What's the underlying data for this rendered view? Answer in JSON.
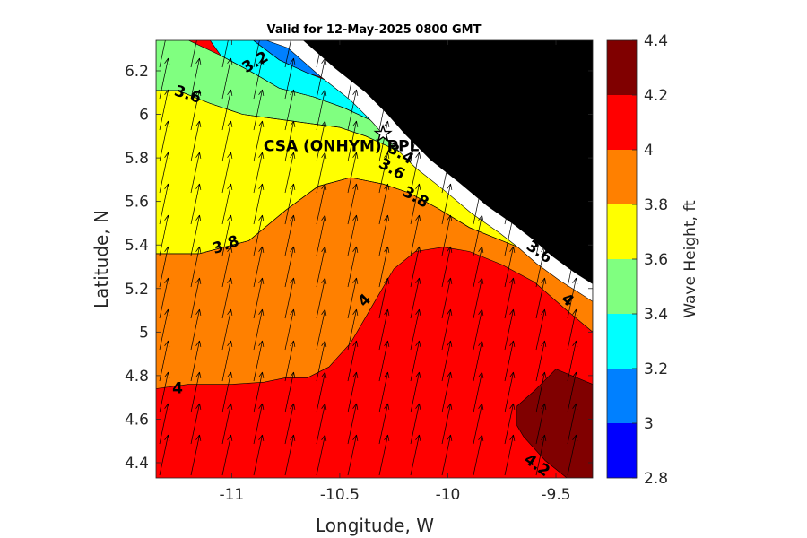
{
  "chart_data": {
    "type": "heatmap",
    "title": "Valid for 12-May-2025 0800 GMT",
    "xlabel": "Longitude, W",
    "ylabel": "Latitude, N",
    "xlim": [
      -11.35,
      -9.33
    ],
    "ylim": [
      4.33,
      6.34
    ],
    "xticks": [
      -11,
      -10.5,
      -10,
      -9.5
    ],
    "xtick_labels": [
      "-11",
      "-10.5",
      "-10",
      "-9.5"
    ],
    "yticks": [
      4.4,
      4.6,
      4.8,
      5,
      5.2,
      5.4,
      5.6,
      5.8,
      6,
      6.2
    ],
    "ytick_labels": [
      "4.4",
      "4.6",
      "4.8",
      "5",
      "5.2",
      "5.4",
      "5.6",
      "5.8",
      "6",
      "6.2"
    ],
    "colorbar": {
      "label": "Wave Height, ft",
      "levels": [
        2.8,
        3.0,
        3.2,
        3.4,
        3.6,
        3.8,
        4.0,
        4.2,
        4.4
      ],
      "tick_labels": [
        "2.8",
        "3",
        "3.2",
        "3.4",
        "3.6",
        "3.8",
        "4",
        "4.2",
        "4.4"
      ],
      "colors": [
        "#0000ff",
        "#0080ff",
        "#00ffff",
        "#80ff80",
        "#ffff00",
        "#ff8000",
        "#ff0000",
        "#800000"
      ]
    },
    "land_color": "#000000",
    "coastline": [
      [
        -10.67,
        6.34
      ],
      [
        -10.52,
        6.21
      ],
      [
        -10.38,
        6.1
      ],
      [
        -10.28,
        6.0
      ],
      [
        -10.2,
        5.91
      ],
      [
        -10.08,
        5.79
      ],
      [
        -9.94,
        5.68
      ],
      [
        -9.82,
        5.58
      ],
      [
        -9.69,
        5.49
      ],
      [
        -9.6,
        5.42
      ],
      [
        -9.52,
        5.35
      ],
      [
        -9.41,
        5.27
      ],
      [
        -9.33,
        5.22
      ]
    ],
    "contour_bands": [
      {
        "level": "3.8-4.0",
        "color": "#ff8000",
        "boundary": [
          [
            -11.35,
            5.36
          ],
          [
            -11.15,
            5.36
          ],
          [
            -10.92,
            5.42
          ],
          [
            -10.75,
            5.56
          ],
          [
            -10.6,
            5.67
          ],
          [
            -10.45,
            5.71
          ],
          [
            -10.3,
            5.68
          ],
          [
            -10.18,
            5.64
          ],
          [
            -10.05,
            5.57
          ],
          [
            -9.9,
            5.48
          ],
          [
            -9.75,
            5.42
          ],
          [
            -9.6,
            5.36
          ],
          [
            -9.5,
            5.32
          ],
          [
            -9.42,
            5.26
          ],
          [
            -9.33,
            5.22
          ],
          [
            -9.33,
            5.0
          ],
          [
            -9.45,
            5.1
          ],
          [
            -9.6,
            5.23
          ],
          [
            -9.75,
            5.31
          ],
          [
            -9.9,
            5.37
          ],
          [
            -10.02,
            5.39
          ],
          [
            -10.15,
            5.37
          ],
          [
            -10.25,
            5.29
          ],
          [
            -10.35,
            5.12
          ],
          [
            -10.45,
            4.95
          ],
          [
            -10.55,
            4.84
          ],
          [
            -10.65,
            4.79
          ],
          [
            -10.75,
            4.79
          ],
          [
            -10.85,
            4.77
          ],
          [
            -11.0,
            4.76
          ],
          [
            -11.2,
            4.76
          ],
          [
            -11.35,
            4.74
          ]
        ]
      },
      {
        "level": "3.6-3.8",
        "color": "#ffff00",
        "boundary": [
          [
            -11.35,
            6.11
          ],
          [
            -11.25,
            6.11
          ],
          [
            -11.1,
            6.05
          ],
          [
            -10.95,
            6.0
          ],
          [
            -10.8,
            5.98
          ],
          [
            -10.65,
            5.96
          ],
          [
            -10.5,
            5.94
          ],
          [
            -10.38,
            5.9
          ],
          [
            -10.27,
            5.85
          ],
          [
            -10.18,
            5.81
          ],
          [
            -10.08,
            5.77
          ],
          [
            -9.95,
            5.7
          ],
          [
            -9.85,
            5.63
          ],
          [
            -9.72,
            5.56
          ],
          [
            -9.6,
            5.49
          ],
          [
            -9.48,
            5.42
          ],
          [
            -9.38,
            5.33
          ],
          [
            -9.33,
            5.28
          ],
          [
            -9.33,
            5.22
          ],
          [
            -9.42,
            5.26
          ],
          [
            -9.5,
            5.32
          ],
          [
            -9.6,
            5.36
          ],
          [
            -9.75,
            5.42
          ],
          [
            -9.9,
            5.48
          ],
          [
            -10.05,
            5.57
          ],
          [
            -10.18,
            5.64
          ],
          [
            -10.3,
            5.68
          ],
          [
            -10.45,
            5.71
          ],
          [
            -10.6,
            5.67
          ],
          [
            -10.75,
            5.56
          ],
          [
            -10.92,
            5.42
          ],
          [
            -11.15,
            5.36
          ],
          [
            -11.35,
            5.36
          ]
        ]
      },
      {
        "level": "3.4-3.6",
        "color": "#80ff80",
        "boundary": [
          [
            -11.35,
            6.34
          ],
          [
            -11.2,
            6.34
          ],
          [
            -11.05,
            6.27
          ],
          [
            -10.9,
            6.19
          ],
          [
            -10.78,
            6.12
          ],
          [
            -10.62,
            6.08
          ],
          [
            -10.48,
            6.03
          ],
          [
            -10.35,
            5.97
          ],
          [
            -10.25,
            5.91
          ],
          [
            -10.15,
            5.84
          ],
          [
            -10.03,
            5.77
          ],
          [
            -9.92,
            5.69
          ],
          [
            -9.82,
            5.61
          ],
          [
            -9.7,
            5.55
          ],
          [
            -9.56,
            5.48
          ],
          [
            -9.45,
            5.4
          ],
          [
            -9.33,
            5.31
          ],
          [
            -9.33,
            5.28
          ],
          [
            -9.38,
            5.33
          ],
          [
            -9.48,
            5.42
          ],
          [
            -9.6,
            5.49
          ],
          [
            -9.72,
            5.56
          ],
          [
            -9.85,
            5.63
          ],
          [
            -9.95,
            5.7
          ],
          [
            -10.08,
            5.77
          ],
          [
            -10.18,
            5.81
          ],
          [
            -10.27,
            5.85
          ],
          [
            -10.38,
            5.9
          ],
          [
            -10.5,
            5.94
          ],
          [
            -10.65,
            5.96
          ],
          [
            -10.8,
            5.98
          ],
          [
            -10.95,
            6.0
          ],
          [
            -11.1,
            6.05
          ],
          [
            -11.25,
            6.11
          ],
          [
            -11.35,
            6.11
          ]
        ]
      },
      {
        "level": "3.2-3.4",
        "color": "#00ffff",
        "boundary": [
          [
            -11.1,
            6.34
          ],
          [
            -10.9,
            6.34
          ],
          [
            -10.78,
            6.25
          ],
          [
            -10.65,
            6.19
          ],
          [
            -10.52,
            6.14
          ],
          [
            -10.4,
            6.06
          ],
          [
            -10.3,
            5.98
          ],
          [
            -10.22,
            5.91
          ],
          [
            -10.12,
            5.84
          ],
          [
            -10.0,
            5.77
          ],
          [
            -9.95,
            5.74
          ],
          [
            -10.04,
            5.79
          ],
          [
            -10.15,
            5.85
          ],
          [
            -10.25,
            5.92
          ],
          [
            -10.35,
            5.97
          ],
          [
            -10.48,
            6.03
          ],
          [
            -10.62,
            6.08
          ],
          [
            -10.78,
            6.12
          ],
          [
            -10.9,
            6.19
          ],
          [
            -11.05,
            6.27
          ]
        ]
      },
      {
        "level": "3.0-3.2",
        "color": "#0080ff",
        "boundary": [
          [
            -10.9,
            6.34
          ],
          [
            -10.75,
            6.34
          ],
          [
            -10.62,
            6.27
          ],
          [
            -10.5,
            6.2
          ],
          [
            -10.4,
            6.14
          ],
          [
            -10.34,
            6.08
          ],
          [
            -10.42,
            6.11
          ],
          [
            -10.52,
            6.15
          ],
          [
            -10.65,
            6.19
          ],
          [
            -10.78,
            6.25
          ]
        ]
      },
      {
        "level": "4.2-4.4",
        "color": "#800000",
        "boundary": [
          [
            -9.68,
            4.66
          ],
          [
            -9.6,
            4.73
          ],
          [
            -9.5,
            4.83
          ],
          [
            -9.33,
            4.76
          ],
          [
            -9.33,
            4.33
          ],
          [
            -9.45,
            4.33
          ],
          [
            -9.55,
            4.41
          ],
          [
            -9.65,
            4.52
          ],
          [
            -9.68,
            4.57
          ]
        ]
      }
    ],
    "contour_labels": [
      {
        "text": "3.2",
        "x": -10.88,
        "y": 6.22,
        "rotate": -30
      },
      {
        "text": "3.6",
        "x": -11.21,
        "y": 6.07,
        "rotate": 18
      },
      {
        "text": "3.4",
        "x": -10.23,
        "y": 5.8,
        "rotate": 30
      },
      {
        "text": "3.6",
        "x": -10.27,
        "y": 5.73,
        "rotate": 30
      },
      {
        "text": "3.8",
        "x": -10.16,
        "y": 5.6,
        "rotate": 30
      },
      {
        "text": "3.6",
        "x": -9.59,
        "y": 5.35,
        "rotate": 35
      },
      {
        "text": "4",
        "x": -9.46,
        "y": 5.13,
        "rotate": 38
      },
      {
        "text": "3.8",
        "x": -11.02,
        "y": 5.38,
        "rotate": -20
      },
      {
        "text": "4",
        "x": -10.37,
        "y": 5.13,
        "rotate": -45
      },
      {
        "text": "4",
        "x": -11.25,
        "y": 4.72,
        "rotate": 0
      },
      {
        "text": "4.2",
        "x": -9.6,
        "y": 4.37,
        "rotate": 35
      }
    ],
    "station": {
      "label": "CSA (ONHYM) PPL ES",
      "lon": -10.3,
      "lat": 5.91
    },
    "wave_direction_deg_from_north": 12
  }
}
